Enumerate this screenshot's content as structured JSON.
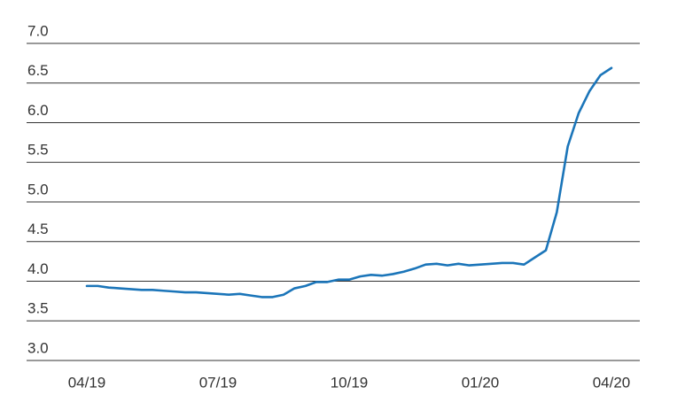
{
  "chart_data": {
    "type": "line",
    "categories": [
      "04/19",
      null,
      null,
      null,
      null,
      null,
      null,
      null,
      null,
      null,
      null,
      null,
      "07/19",
      null,
      null,
      null,
      null,
      null,
      null,
      null,
      null,
      null,
      null,
      null,
      "10/19",
      null,
      null,
      null,
      null,
      null,
      null,
      null,
      null,
      null,
      null,
      null,
      "01/20",
      null,
      null,
      null,
      null,
      null,
      null,
      null,
      null,
      null,
      null,
      null,
      "04/20"
    ],
    "values": [
      3.94,
      3.94,
      3.92,
      3.91,
      3.9,
      3.89,
      3.89,
      3.88,
      3.87,
      3.86,
      3.86,
      3.85,
      3.84,
      3.83,
      3.84,
      3.82,
      3.8,
      3.8,
      3.83,
      3.91,
      3.94,
      3.99,
      3.99,
      4.02,
      4.02,
      4.06,
      4.08,
      4.07,
      4.09,
      4.12,
      4.16,
      4.21,
      4.22,
      4.2,
      4.22,
      4.2,
      4.21,
      4.22,
      4.23,
      4.23,
      4.21,
      4.3,
      4.39,
      4.87,
      5.7,
      6.12,
      6.4,
      6.6,
      6.69
    ],
    "color": "#1b75b9",
    "ylim": [
      3,
      7
    ],
    "yticks": [
      {
        "value": 3,
        "label": "3.0"
      },
      3.5,
      {
        "value": 4,
        "label": "4.0"
      },
      4.5,
      {
        "value": 5,
        "label": "5.0"
      },
      5.5,
      {
        "value": 6,
        "label": "6.0"
      },
      6.5,
      {
        "value": 7,
        "label": "7.0"
      }
    ],
    "grid": true
  }
}
